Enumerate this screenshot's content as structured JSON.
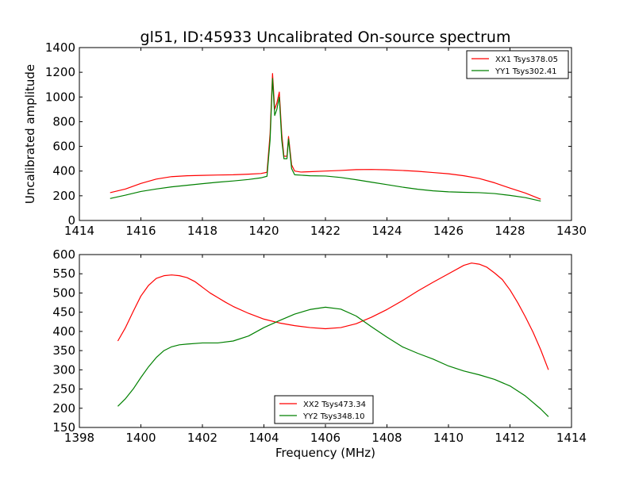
{
  "title": "gl51, ID:45933 Uncalibrated On-source spectrum",
  "chart_data": [
    {
      "type": "line",
      "xlim": [
        1414,
        1430
      ],
      "ylim": [
        0,
        1400
      ],
      "xticks": [
        1414,
        1416,
        1418,
        1420,
        1422,
        1424,
        1426,
        1428,
        1430
      ],
      "yticks": [
        0,
        200,
        400,
        600,
        800,
        1000,
        1200,
        1400
      ],
      "xlabel": "",
      "ylabel": "Uncalibrated amplitude",
      "legend_position": "top-right",
      "series": [
        {
          "name": "XX1 Tsys378.05",
          "color": "#ff0000",
          "points": [
            [
              1415.0,
              225
            ],
            [
              1415.5,
              255
            ],
            [
              1416.0,
              300
            ],
            [
              1416.5,
              335
            ],
            [
              1417.0,
              355
            ],
            [
              1417.5,
              362
            ],
            [
              1418.0,
              365
            ],
            [
              1418.5,
              368
            ],
            [
              1419.0,
              370
            ],
            [
              1419.5,
              375
            ],
            [
              1419.9,
              380
            ],
            [
              1420.1,
              390
            ],
            [
              1420.2,
              700
            ],
            [
              1420.28,
              1190
            ],
            [
              1420.35,
              900
            ],
            [
              1420.42,
              950
            ],
            [
              1420.5,
              1040
            ],
            [
              1420.58,
              700
            ],
            [
              1420.65,
              520
            ],
            [
              1420.75,
              520
            ],
            [
              1420.8,
              680
            ],
            [
              1420.9,
              450
            ],
            [
              1421.0,
              400
            ],
            [
              1421.2,
              392
            ],
            [
              1421.5,
              395
            ],
            [
              1422.0,
              400
            ],
            [
              1422.5,
              405
            ],
            [
              1423.0,
              412
            ],
            [
              1423.5,
              413
            ],
            [
              1424.0,
              410
            ],
            [
              1424.5,
              405
            ],
            [
              1425.0,
              398
            ],
            [
              1425.5,
              388
            ],
            [
              1426.0,
              378
            ],
            [
              1426.5,
              362
            ],
            [
              1427.0,
              340
            ],
            [
              1427.5,
              305
            ],
            [
              1428.0,
              262
            ],
            [
              1428.5,
              222
            ],
            [
              1429.0,
              172
            ]
          ]
        },
        {
          "name": "YY1 Tsys302.41",
          "color": "#008000",
          "points": [
            [
              1415.0,
              178
            ],
            [
              1415.5,
              205
            ],
            [
              1416.0,
              235
            ],
            [
              1416.5,
              255
            ],
            [
              1417.0,
              272
            ],
            [
              1417.5,
              285
            ],
            [
              1418.0,
              298
            ],
            [
              1418.5,
              310
            ],
            [
              1419.0,
              320
            ],
            [
              1419.5,
              332
            ],
            [
              1419.9,
              345
            ],
            [
              1420.1,
              358
            ],
            [
              1420.2,
              650
            ],
            [
              1420.28,
              1150
            ],
            [
              1420.35,
              850
            ],
            [
              1420.42,
              900
            ],
            [
              1420.5,
              1000
            ],
            [
              1420.58,
              650
            ],
            [
              1420.65,
              500
            ],
            [
              1420.75,
              500
            ],
            [
              1420.8,
              660
            ],
            [
              1420.9,
              420
            ],
            [
              1421.0,
              370
            ],
            [
              1421.5,
              362
            ],
            [
              1422.0,
              360
            ],
            [
              1422.5,
              348
            ],
            [
              1423.0,
              330
            ],
            [
              1423.5,
              310
            ],
            [
              1424.0,
              290
            ],
            [
              1424.5,
              270
            ],
            [
              1425.0,
              253
            ],
            [
              1425.5,
              240
            ],
            [
              1426.0,
              232
            ],
            [
              1426.5,
              228
            ],
            [
              1427.0,
              225
            ],
            [
              1427.5,
              218
            ],
            [
              1428.0,
              203
            ],
            [
              1428.5,
              185
            ],
            [
              1429.0,
              157
            ]
          ]
        }
      ]
    },
    {
      "type": "line",
      "xlim": [
        1398,
        1414
      ],
      "ylim": [
        150,
        600
      ],
      "xticks": [
        1398,
        1400,
        1402,
        1404,
        1406,
        1408,
        1410,
        1412,
        1414
      ],
      "yticks": [
        150,
        200,
        250,
        300,
        350,
        400,
        450,
        500,
        550,
        600
      ],
      "xlabel": "Frequency (MHz)",
      "ylabel": "",
      "legend_position": "bottom-center",
      "series": [
        {
          "name": "XX2 Tsys473.34",
          "color": "#ff0000",
          "points": [
            [
              1399.25,
              375
            ],
            [
              1399.5,
              410
            ],
            [
              1399.75,
              452
            ],
            [
              1400.0,
              492
            ],
            [
              1400.25,
              520
            ],
            [
              1400.5,
              538
            ],
            [
              1400.75,
              545
            ],
            [
              1401.0,
              547
            ],
            [
              1401.25,
              545
            ],
            [
              1401.5,
              540
            ],
            [
              1401.75,
              530
            ],
            [
              1402.0,
              515
            ],
            [
              1402.25,
              500
            ],
            [
              1402.5,
              488
            ],
            [
              1402.75,
              476
            ],
            [
              1403.0,
              465
            ],
            [
              1403.5,
              447
            ],
            [
              1404.0,
              432
            ],
            [
              1404.5,
              422
            ],
            [
              1405.0,
              415
            ],
            [
              1405.5,
              410
            ],
            [
              1406.0,
              407
            ],
            [
              1406.5,
              410
            ],
            [
              1407.0,
              420
            ],
            [
              1407.5,
              437
            ],
            [
              1408.0,
              457
            ],
            [
              1408.5,
              480
            ],
            [
              1409.0,
              505
            ],
            [
              1409.5,
              528
            ],
            [
              1410.0,
              550
            ],
            [
              1410.5,
              572
            ],
            [
              1410.75,
              578
            ],
            [
              1411.0,
              575
            ],
            [
              1411.25,
              567
            ],
            [
              1411.5,
              552
            ],
            [
              1411.75,
              535
            ],
            [
              1412.0,
              508
            ],
            [
              1412.25,
              475
            ],
            [
              1412.5,
              438
            ],
            [
              1412.75,
              398
            ],
            [
              1413.0,
              352
            ],
            [
              1413.25,
              300
            ]
          ]
        },
        {
          "name": "YY2 Tsys348.10",
          "color": "#008000",
          "points": [
            [
              1399.25,
              205
            ],
            [
              1399.5,
              225
            ],
            [
              1399.75,
              250
            ],
            [
              1400.0,
              280
            ],
            [
              1400.25,
              308
            ],
            [
              1400.5,
              332
            ],
            [
              1400.75,
              350
            ],
            [
              1401.0,
              360
            ],
            [
              1401.25,
              365
            ],
            [
              1401.5,
              367
            ],
            [
              1402.0,
              370
            ],
            [
              1402.5,
              370
            ],
            [
              1403.0,
              375
            ],
            [
              1403.5,
              388
            ],
            [
              1404.0,
              410
            ],
            [
              1404.5,
              428
            ],
            [
              1405.0,
              445
            ],
            [
              1405.5,
              457
            ],
            [
              1406.0,
              463
            ],
            [
              1406.5,
              458
            ],
            [
              1407.0,
              440
            ],
            [
              1407.5,
              412
            ],
            [
              1408.0,
              385
            ],
            [
              1408.5,
              360
            ],
            [
              1409.0,
              343
            ],
            [
              1409.5,
              328
            ],
            [
              1410.0,
              310
            ],
            [
              1410.5,
              297
            ],
            [
              1411.0,
              287
            ],
            [
              1411.5,
              275
            ],
            [
              1412.0,
              258
            ],
            [
              1412.5,
              232
            ],
            [
              1413.0,
              198
            ],
            [
              1413.25,
              178
            ]
          ]
        }
      ]
    }
  ]
}
